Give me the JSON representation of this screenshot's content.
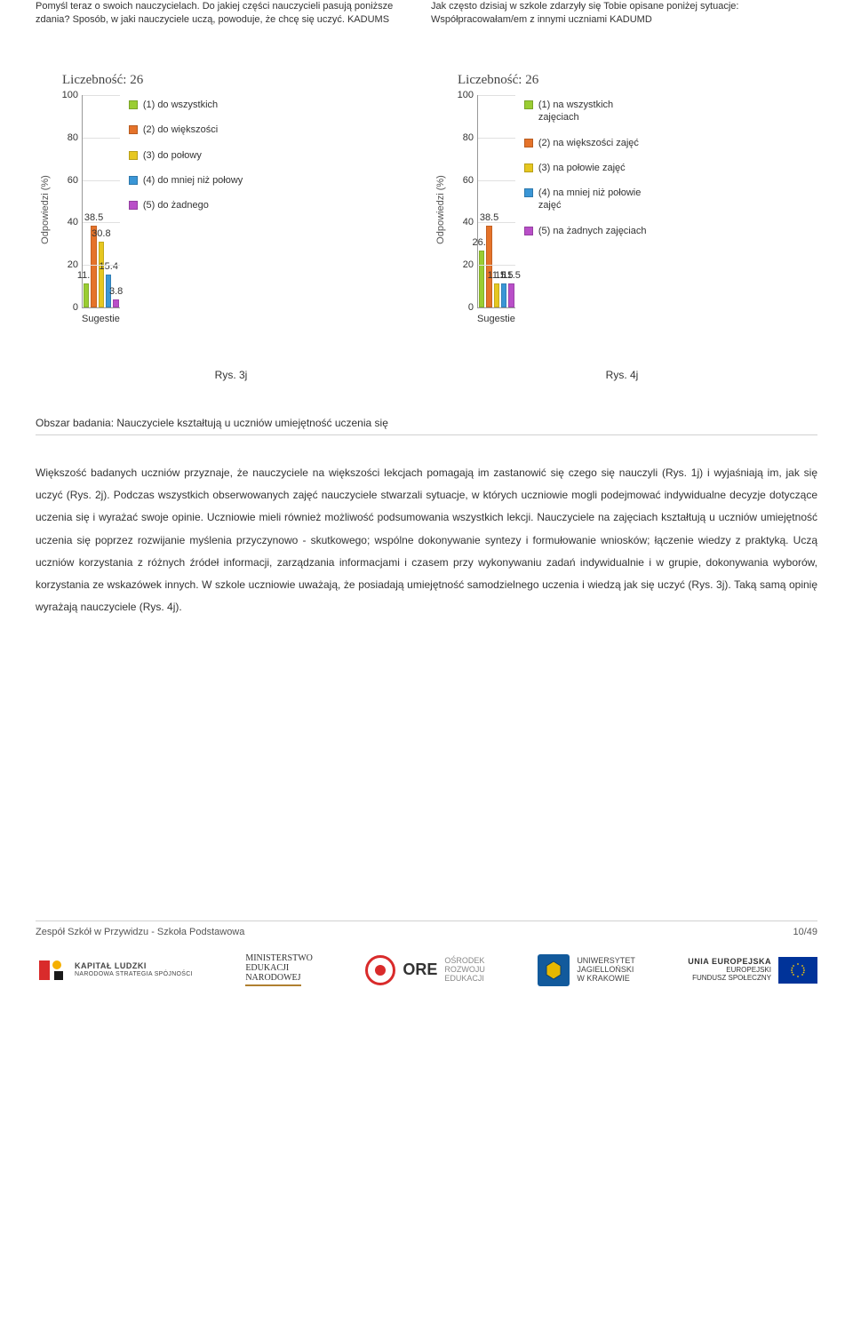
{
  "chart1": {
    "question": "Pomyśl teraz o swoich nauczycielach. Do jakiej części nauczycieli pasują poniższe zdania? Sposób, w jaki nauczyciele uczą, powoduje, że chcę się uczyć. KADUMS",
    "count_label": "Liczebność: 26",
    "ylabel": "Odpowiedzi (%)",
    "xlabel": "Sugestie",
    "ylim": [
      0,
      100
    ],
    "ytick_step": 20,
    "bars": [
      {
        "value": 11.5,
        "label": "11.5",
        "color": "#9acd32"
      },
      {
        "value": 38.5,
        "label": "38.5",
        "color": "#e5732a"
      },
      {
        "value": 30.8,
        "label": "30.8",
        "color": "#e6c720"
      },
      {
        "value": 15.4,
        "label": "15.4",
        "color": "#3a96d6"
      },
      {
        "value": 3.8,
        "label": "3.8",
        "color": "#b94fc8"
      }
    ],
    "legend": [
      {
        "color": "#9acd32",
        "text": "(1) do wszystkich"
      },
      {
        "color": "#e5732a",
        "text": "(2) do większości"
      },
      {
        "color": "#e6c720",
        "text": "(3) do połowy"
      },
      {
        "color": "#3a96d6",
        "text": "(4) do mniej niż połowy"
      },
      {
        "color": "#b94fc8",
        "text": "(5) do żadnego"
      }
    ]
  },
  "chart2": {
    "question": "Jak często dzisiaj w szkole zdarzyły się Tobie opisane poniżej sytuacje: Współpracowałam/em z innymi uczniami KADUMD",
    "count_label": "Liczebność: 26",
    "ylabel": "Odpowiedzi (%)",
    "xlabel": "Sugestie",
    "ylim": [
      0,
      100
    ],
    "ytick_step": 20,
    "bars": [
      {
        "value": 26.9,
        "label": "26.9",
        "color": "#9acd32"
      },
      {
        "value": 38.5,
        "label": "38.5",
        "color": "#e5732a"
      },
      {
        "value": 11.5,
        "label": "11.5",
        "color": "#e6c720"
      },
      {
        "value": 11.5,
        "label": "11.5",
        "color": "#3a96d6"
      },
      {
        "value": 11.5,
        "label": "11.5",
        "color": "#b94fc8"
      }
    ],
    "legend": [
      {
        "color": "#9acd32",
        "text": "(1) na wszystkich zajęciach"
      },
      {
        "color": "#e5732a",
        "text": "(2) na większości zajęć"
      },
      {
        "color": "#e6c720",
        "text": "(3) na połowie zajęć"
      },
      {
        "color": "#3a96d6",
        "text": "(4) na mniej niż połowie zajęć"
      },
      {
        "color": "#b94fc8",
        "text": "(5) na żadnych zajęciach"
      }
    ]
  },
  "fig_captions": {
    "left": "Rys. 3j",
    "right": "Rys. 4j"
  },
  "section_heading": "Obszar badania: Nauczyciele kształtują u uczniów umiejętność uczenia się",
  "body_text": "Większość badanych uczniów przyznaje, że nauczyciele na większości lekcjach pomagają im zastanowić się czego się nauczyli (Rys. 1j) i wyjaśniają im, jak się uczyć (Rys. 2j). Podczas wszystkich obserwowanych zajęć nauczyciele stwarzali sytuacje, w których uczniowie mogli podejmować indywidualne decyzje dotyczące uczenia się i wyrażać swoje opinie. Uczniowie mieli również możliwość podsumowania wszystkich lekcji. Nauczyciele na zajęciach kształtują u uczniów umiejętność uczenia się poprzez rozwijanie myślenia przyczynowo - skutkowego; wspólne dokonywanie syntezy i formułowanie wniosków; łączenie wiedzy z praktyką. Uczą uczniów korzystania z różnych źródeł informacji, zarządzania informacjami i czasem przy wykonywaniu zadań indywidualnie i w grupie, dokonywania wyborów, korzystania ze wskazówek innych. W szkole uczniowie uważają, że posiadają umiejętność samodzielnego uczenia i wiedzą jak się uczyć (Rys. 3j). Taką samą opinię wyrażają nauczyciele (Rys. 4j).",
  "footer": {
    "left": "Zespół Szkół w Przywidzu - Szkoła Podstawowa",
    "right": "10/49"
  },
  "logos": {
    "kl": {
      "main": "KAPITAŁ LUDZKI",
      "sub": "NARODOWA STRATEGIA SPÓJNOŚCI"
    },
    "men": {
      "l1": "MINISTERSTWO",
      "l2": "EDUKACJI",
      "l3": "NARODOWEJ"
    },
    "ore": {
      "brand": "ORE",
      "l1": "OŚRODEK",
      "l2": "ROZWOJU",
      "l3": "EDUKACJI"
    },
    "uj": {
      "l1": "UNIWERSYTET",
      "l2": "JAGIELLOŃSKI",
      "l3": "W KRAKOWIE"
    },
    "eu": {
      "l1": "UNIA EUROPEJSKA",
      "l2": "EUROPEJSKI",
      "l3": "FUNDUSZ SPOŁECZNY"
    }
  },
  "grid_color": "#e0e0e0"
}
